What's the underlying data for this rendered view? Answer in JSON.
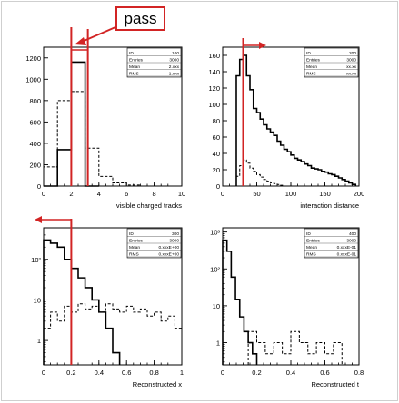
{
  "annotation": {
    "label": "pass",
    "color": "#d22424"
  },
  "chart_data": [
    {
      "type": "histogram",
      "xlabel": "visible charged tracks",
      "ylabel": "",
      "x_ticks": [
        0,
        2,
        4,
        6,
        8,
        10
      ],
      "y_ticks": [
        0,
        200,
        400,
        600,
        800,
        1000,
        1200
      ],
      "xlim": [
        0,
        10
      ],
      "ylim": [
        0,
        1300
      ],
      "log_y": false,
      "stats": [
        [
          "ID",
          "100"
        ],
        [
          "Entries",
          "3000"
        ],
        [
          "Mean",
          "2.xxx"
        ],
        [
          "RMS",
          "1.xxx"
        ]
      ],
      "cut": {
        "value": 2,
        "second_value": 3.2,
        "direction": "pass"
      },
      "series": [
        {
          "style": "solid",
          "bins": [
            [
              0,
              1,
              0
            ],
            [
              1,
              2,
              340
            ],
            [
              2,
              3,
              1160
            ],
            [
              3,
              4,
              0
            ]
          ]
        },
        {
          "style": "dashed",
          "bins": [
            [
              0,
              1,
              180
            ],
            [
              1,
              2,
              800
            ],
            [
              2,
              3,
              885
            ],
            [
              3,
              4,
              355
            ],
            [
              4,
              5,
              90
            ],
            [
              5,
              6,
              30
            ],
            [
              6,
              7,
              10
            ]
          ]
        }
      ]
    },
    {
      "type": "histogram",
      "xlabel": "interaction distance",
      "ylabel": "",
      "x_ticks": [
        0,
        50,
        100,
        150,
        200
      ],
      "y_ticks": [
        0,
        20,
        40,
        60,
        80,
        100,
        120,
        140,
        160
      ],
      "xlim": [
        0,
        200
      ],
      "ylim": [
        0,
        170
      ],
      "log_y": false,
      "stats": [
        [
          "ID",
          "200"
        ],
        [
          "Entries",
          "3000"
        ],
        [
          "Mean",
          "xx.xx"
        ],
        [
          "RMS",
          "xx.xx"
        ]
      ],
      "cut": {
        "value": 30,
        "direction": "right"
      },
      "series": [
        {
          "style": "solid",
          "bins": [
            [
              20,
              25,
              135
            ],
            [
              25,
              30,
              155
            ],
            [
              30,
              35,
              160
            ],
            [
              35,
              40,
              135
            ],
            [
              40,
              45,
              118
            ],
            [
              45,
              50,
              95
            ],
            [
              50,
              55,
              90
            ],
            [
              55,
              60,
              82
            ],
            [
              60,
              65,
              75
            ],
            [
              65,
              70,
              70
            ],
            [
              70,
              75,
              66
            ],
            [
              75,
              80,
              62
            ],
            [
              80,
              85,
              55
            ],
            [
              85,
              90,
              50
            ],
            [
              90,
              95,
              45
            ],
            [
              95,
              100,
              42
            ],
            [
              100,
              105,
              38
            ],
            [
              105,
              110,
              34
            ],
            [
              110,
              115,
              32
            ],
            [
              115,
              120,
              30
            ],
            [
              120,
              125,
              27
            ],
            [
              125,
              130,
              25
            ],
            [
              130,
              135,
              22
            ],
            [
              135,
              140,
              21
            ],
            [
              140,
              145,
              20
            ],
            [
              145,
              150,
              18
            ],
            [
              150,
              155,
              17
            ],
            [
              155,
              160,
              15
            ],
            [
              160,
              165,
              14
            ],
            [
              165,
              170,
              12
            ],
            [
              170,
              175,
              10
            ],
            [
              175,
              180,
              8
            ],
            [
              180,
              185,
              6
            ],
            [
              185,
              190,
              4
            ],
            [
              190,
              195,
              2
            ]
          ]
        },
        {
          "style": "dashed",
          "bins": [
            [
              20,
              25,
              12
            ],
            [
              25,
              30,
              25
            ],
            [
              30,
              35,
              32
            ],
            [
              35,
              40,
              28
            ],
            [
              40,
              45,
              22
            ],
            [
              45,
              50,
              18
            ],
            [
              50,
              55,
              14
            ],
            [
              55,
              60,
              11
            ],
            [
              60,
              65,
              8
            ],
            [
              65,
              70,
              6
            ],
            [
              70,
              75,
              4
            ],
            [
              75,
              80,
              3
            ],
            [
              80,
              85,
              2
            ],
            [
              85,
              90,
              1
            ]
          ]
        }
      ]
    },
    {
      "type": "histogram",
      "xlabel": "Reconstructed x",
      "ylabel": "",
      "x_ticks": [
        0,
        0.2,
        0.4,
        0.6,
        0.8,
        1
      ],
      "y_ticks": [
        1,
        10,
        100
      ],
      "y_tick_labels": [
        "1",
        "10",
        "10²"
      ],
      "xlim": [
        0,
        1
      ],
      "ylim": [
        0.25,
        600
      ],
      "log_y": true,
      "stats": [
        [
          "ID",
          "300"
        ],
        [
          "Entries",
          "3000"
        ],
        [
          "Mean",
          "0.xxxE+00"
        ],
        [
          "RMS",
          "0.xxxE+00"
        ]
      ],
      "cut": {
        "value": 0.2,
        "direction": "left"
      },
      "series": [
        {
          "style": "solid",
          "bins": [
            [
              0,
              0.05,
              300
            ],
            [
              0.05,
              0.1,
              250
            ],
            [
              0.1,
              0.15,
              200
            ],
            [
              0.15,
              0.2,
              100
            ],
            [
              0.2,
              0.25,
              60
            ],
            [
              0.25,
              0.3,
              35
            ],
            [
              0.3,
              0.35,
              20
            ],
            [
              0.35,
              0.4,
              10
            ],
            [
              0.4,
              0.45,
              5
            ],
            [
              0.45,
              0.5,
              2
            ],
            [
              0.5,
              0.55,
              0.5
            ]
          ]
        },
        {
          "style": "dashed",
          "bins": [
            [
              0,
              0.05,
              2
            ],
            [
              0.05,
              0.1,
              5
            ],
            [
              0.1,
              0.15,
              3
            ],
            [
              0.15,
              0.2,
              7
            ],
            [
              0.2,
              0.25,
              5
            ],
            [
              0.25,
              0.3,
              8
            ],
            [
              0.3,
              0.35,
              6
            ],
            [
              0.35,
              0.4,
              7
            ],
            [
              0.4,
              0.45,
              5
            ],
            [
              0.45,
              0.5,
              8
            ],
            [
              0.5,
              0.55,
              6
            ],
            [
              0.55,
              0.6,
              5
            ],
            [
              0.6,
              0.65,
              7
            ],
            [
              0.65,
              0.7,
              5
            ],
            [
              0.7,
              0.75,
              6
            ],
            [
              0.75,
              0.8,
              4
            ],
            [
              0.8,
              0.85,
              5
            ],
            [
              0.85,
              0.9,
              3
            ],
            [
              0.9,
              0.95,
              4
            ],
            [
              0.95,
              1.0,
              2
            ]
          ]
        }
      ]
    },
    {
      "type": "histogram",
      "xlabel": "Reconstructed t",
      "ylabel": "",
      "x_ticks": [
        0,
        0.2,
        0.4,
        0.6,
        0.8
      ],
      "y_ticks": [
        1,
        10,
        100,
        1000
      ],
      "y_tick_labels": [
        "1",
        "10",
        "10²",
        "10³"
      ],
      "xlim": [
        0,
        0.8
      ],
      "ylim": [
        0.25,
        1300
      ],
      "log_y": true,
      "stats": [
        [
          "ID",
          "400"
        ],
        [
          "Entries",
          "3000"
        ],
        [
          "Mean",
          "0.xxxE-01"
        ],
        [
          "RMS",
          "0.xxxE-01"
        ]
      ],
      "series": [
        {
          "style": "solid",
          "bins": [
            [
              0,
              0.025,
              600
            ],
            [
              0.025,
              0.05,
              300
            ],
            [
              0.05,
              0.075,
              60
            ],
            [
              0.075,
              0.1,
              15
            ],
            [
              0.1,
              0.125,
              5
            ],
            [
              0.125,
              0.15,
              2
            ],
            [
              0.15,
              0.175,
              1
            ],
            [
              0.175,
              0.2,
              0.5
            ]
          ]
        },
        {
          "style": "dashed",
          "bins": [
            [
              0.15,
              0.2,
              2
            ],
            [
              0.2,
              0.25,
              1
            ],
            [
              0.25,
              0.3,
              0.5
            ],
            [
              0.3,
              0.35,
              1
            ],
            [
              0.35,
              0.4,
              0.5
            ],
            [
              0.4,
              0.45,
              2
            ],
            [
              0.45,
              0.5,
              1
            ],
            [
              0.5,
              0.55,
              0.5
            ],
            [
              0.55,
              0.6,
              1
            ],
            [
              0.6,
              0.65,
              0.5
            ],
            [
              0.65,
              0.7,
              1
            ]
          ]
        }
      ]
    }
  ]
}
